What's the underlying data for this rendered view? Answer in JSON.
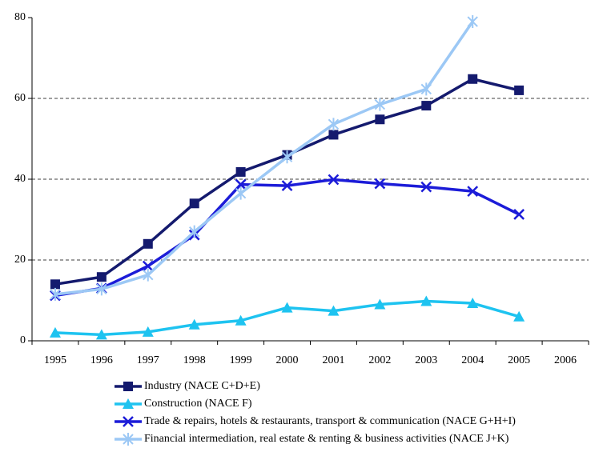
{
  "chart_data": {
    "type": "line",
    "categories": [
      "1995",
      "1996",
      "1997",
      "1998",
      "1999",
      "2000",
      "2001",
      "2002",
      "2003",
      "2004",
      "2005",
      "2006"
    ],
    "series": [
      {
        "name": "Industry (NACE C+D+E)",
        "color": "#141a6e",
        "marker": "square",
        "values": [
          14,
          15.8,
          24,
          34,
          41.8,
          46,
          51,
          54.8,
          58.2,
          64.8,
          62,
          null
        ]
      },
      {
        "name": "Construction (NACE F)",
        "color": "#1ec3f0",
        "marker": "triangle",
        "values": [
          2,
          1.5,
          2.2,
          4,
          5,
          8.2,
          7.4,
          9,
          9.8,
          9.3,
          6,
          null
        ]
      },
      {
        "name": "Trade & repairs, hotels & restaurants, transport & communication (NACE G+H+I)",
        "color": "#1c1cd8",
        "marker": "x",
        "values": [
          11.2,
          13,
          18.5,
          26.2,
          38.7,
          38.4,
          39.9,
          38.9,
          38.1,
          37,
          31.3,
          null
        ]
      },
      {
        "name": "Financial intermediation, real estate & renting & business activities (NACE J+K)",
        "color": "#9cc8f5",
        "marker": "star",
        "values": [
          11.5,
          12.8,
          16.3,
          27,
          36.5,
          45.5,
          53.6,
          58.5,
          62.3,
          79,
          null,
          null
        ]
      }
    ],
    "ylim": [
      0,
      80
    ],
    "yticks": [
      0,
      20,
      40,
      60,
      80
    ],
    "grid": true
  }
}
